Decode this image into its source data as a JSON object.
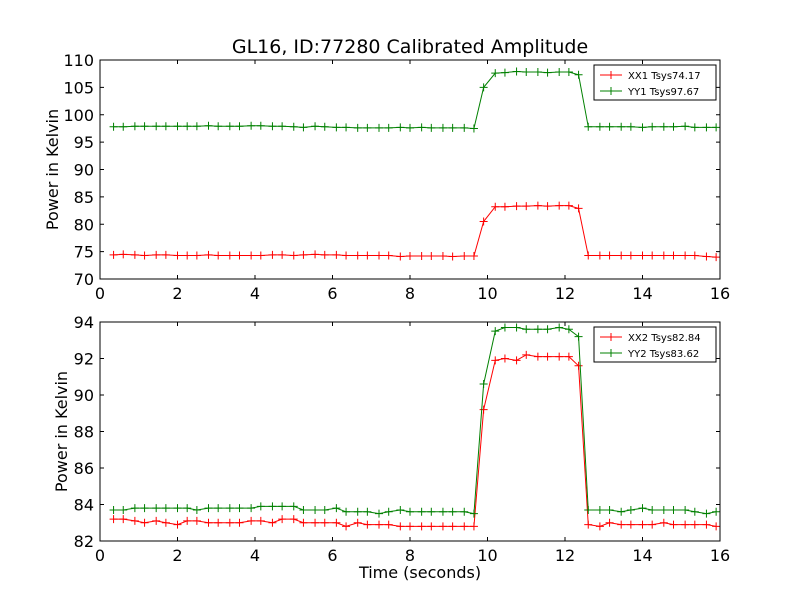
{
  "figure": {
    "title": "GL16, ID:77280 Calibrated Amplitude"
  },
  "chart_data": [
    {
      "type": "line",
      "title": "GL16, ID:77280 Calibrated Amplitude",
      "xlabel": "",
      "ylabel": "Power in Kelvin",
      "xlim": [
        0,
        16
      ],
      "ylim": [
        70,
        110
      ],
      "xticks": [
        "0",
        "2",
        "4",
        "6",
        "8",
        "10",
        "12",
        "14",
        "16"
      ],
      "yticks": [
        "70",
        "75",
        "80",
        "85",
        "90",
        "95",
        "100",
        "105",
        "110"
      ],
      "grid": false,
      "legend_position": "top-right",
      "x": [
        0.35,
        0.6,
        0.9,
        1.15,
        1.45,
        1.7,
        2.0,
        2.25,
        2.5,
        2.8,
        3.05,
        3.35,
        3.6,
        3.9,
        4.15,
        4.45,
        4.7,
        5.0,
        5.25,
        5.55,
        5.8,
        6.1,
        6.35,
        6.65,
        6.9,
        7.2,
        7.45,
        7.75,
        8.0,
        8.3,
        8.55,
        8.85,
        9.1,
        9.4,
        9.65,
        9.9,
        10.2,
        10.45,
        10.75,
        11.0,
        11.3,
        11.55,
        11.85,
        12.1,
        12.35,
        12.6,
        12.9,
        13.15,
        13.45,
        13.7,
        14.0,
        14.25,
        14.55,
        14.8,
        15.1,
        15.35,
        15.65,
        15.9
      ],
      "series": [
        {
          "name": "XX1 Tsys74.17",
          "color": "#ff0000",
          "values": [
            74.4,
            74.5,
            74.4,
            74.3,
            74.4,
            74.4,
            74.3,
            74.3,
            74.3,
            74.4,
            74.3,
            74.3,
            74.3,
            74.3,
            74.3,
            74.4,
            74.4,
            74.3,
            74.4,
            74.5,
            74.4,
            74.4,
            74.3,
            74.3,
            74.3,
            74.3,
            74.3,
            74.1,
            74.2,
            74.2,
            74.2,
            74.2,
            74.1,
            74.2,
            74.2,
            80.5,
            83.2,
            83.2,
            83.3,
            83.3,
            83.4,
            83.3,
            83.4,
            83.4,
            82.9,
            74.3,
            74.3,
            74.3,
            74.3,
            74.3,
            74.3,
            74.3,
            74.3,
            74.3,
            74.3,
            74.3,
            74.1,
            74.0
          ]
        },
        {
          "name": "YY1 Tsys97.67",
          "color": "#008000",
          "values": [
            97.8,
            97.8,
            97.9,
            97.9,
            97.9,
            97.9,
            97.9,
            97.9,
            97.9,
            98.0,
            97.9,
            97.9,
            97.9,
            98.0,
            98.0,
            97.9,
            97.9,
            97.8,
            97.7,
            97.9,
            97.8,
            97.7,
            97.7,
            97.6,
            97.6,
            97.6,
            97.6,
            97.7,
            97.6,
            97.7,
            97.6,
            97.6,
            97.6,
            97.6,
            97.5,
            105.0,
            107.6,
            107.7,
            107.9,
            107.8,
            107.8,
            107.7,
            107.8,
            107.8,
            107.3,
            97.8,
            97.8,
            97.8,
            97.8,
            97.8,
            97.7,
            97.8,
            97.8,
            97.8,
            97.9,
            97.7,
            97.7,
            97.7
          ]
        }
      ]
    },
    {
      "type": "line",
      "title": "",
      "xlabel": "Time (seconds)",
      "ylabel": "Power in Kelvin",
      "xlim": [
        0,
        16
      ],
      "ylim": [
        82,
        94
      ],
      "xticks": [
        "0",
        "2",
        "4",
        "6",
        "8",
        "10",
        "12",
        "14",
        "16"
      ],
      "yticks": [
        "82",
        "84",
        "86",
        "88",
        "90",
        "92",
        "94"
      ],
      "grid": false,
      "legend_position": "top-right",
      "x": [
        0.35,
        0.6,
        0.9,
        1.15,
        1.45,
        1.7,
        2.0,
        2.25,
        2.5,
        2.8,
        3.05,
        3.35,
        3.6,
        3.9,
        4.15,
        4.45,
        4.7,
        5.0,
        5.25,
        5.55,
        5.8,
        6.1,
        6.35,
        6.65,
        6.9,
        7.2,
        7.45,
        7.75,
        8.0,
        8.3,
        8.55,
        8.85,
        9.1,
        9.4,
        9.65,
        9.9,
        10.2,
        10.45,
        10.75,
        11.0,
        11.3,
        11.55,
        11.85,
        12.1,
        12.35,
        12.6,
        12.9,
        13.15,
        13.45,
        13.7,
        14.0,
        14.25,
        14.55,
        14.8,
        15.1,
        15.35,
        15.65,
        15.9
      ],
      "series": [
        {
          "name": "XX2 Tsys82.84",
          "color": "#ff0000",
          "values": [
            83.2,
            83.2,
            83.1,
            83.0,
            83.1,
            83.0,
            82.9,
            83.1,
            83.1,
            83.0,
            83.0,
            83.0,
            83.0,
            83.1,
            83.1,
            83.0,
            83.2,
            83.2,
            83.0,
            83.0,
            83.0,
            83.0,
            82.8,
            83.0,
            82.9,
            82.9,
            82.9,
            82.8,
            82.8,
            82.8,
            82.8,
            82.8,
            82.8,
            82.8,
            82.8,
            89.2,
            91.9,
            92.0,
            91.9,
            92.2,
            92.1,
            92.1,
            92.1,
            92.1,
            91.6,
            82.9,
            82.8,
            83.0,
            82.9,
            82.9,
            82.9,
            82.9,
            83.0,
            82.9,
            82.9,
            82.9,
            82.9,
            82.8
          ]
        },
        {
          "name": "YY2 Tsys83.62",
          "color": "#008000",
          "values": [
            83.7,
            83.7,
            83.8,
            83.8,
            83.8,
            83.8,
            83.8,
            83.8,
            83.7,
            83.8,
            83.8,
            83.8,
            83.8,
            83.8,
            83.9,
            83.9,
            83.9,
            83.9,
            83.7,
            83.7,
            83.7,
            83.8,
            83.6,
            83.6,
            83.6,
            83.5,
            83.6,
            83.7,
            83.6,
            83.6,
            83.6,
            83.6,
            83.6,
            83.6,
            83.5,
            90.6,
            93.5,
            93.7,
            93.7,
            93.6,
            93.6,
            93.6,
            93.7,
            93.6,
            93.2,
            83.7,
            83.7,
            83.7,
            83.6,
            83.7,
            83.8,
            83.7,
            83.7,
            83.7,
            83.7,
            83.6,
            83.5,
            83.6
          ]
        }
      ]
    }
  ]
}
